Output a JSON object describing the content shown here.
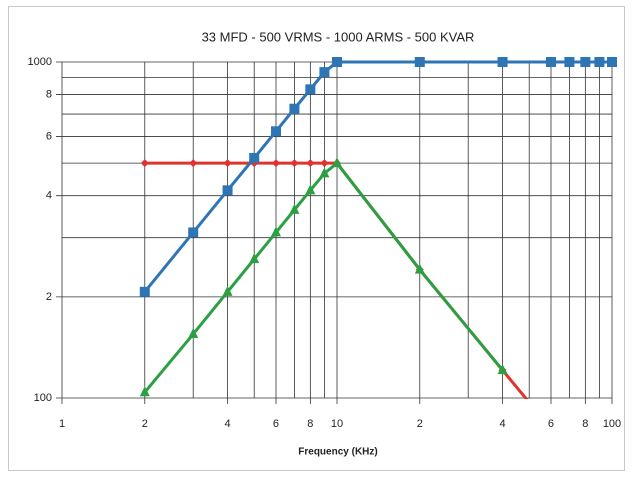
{
  "chart_data": {
    "type": "line",
    "title": "33 MFD - 500 VRMS - 1000 ARMS - 500 KVAR",
    "x_label": "Frequency (KHz)",
    "log_x": true,
    "log_y": true,
    "grid": true,
    "xlim": [
      1,
      100
    ],
    "xticks": [
      1,
      2,
      4,
      6,
      8,
      10,
      {
        "value": 20,
        "label": "2"
      },
      {
        "value": 40,
        "label": "4"
      },
      {
        "value": 60,
        "label": "6"
      },
      {
        "value": 80,
        "label": "8"
      },
      100
    ],
    "xminor": [
      3,
      5,
      7,
      9,
      30,
      50,
      70,
      90
    ],
    "ylim": [
      100,
      1000
    ],
    "yticks": [
      100,
      {
        "value": 200,
        "label": "2"
      },
      {
        "value": 400,
        "label": "4"
      },
      {
        "value": 600,
        "label": "6"
      },
      {
        "value": 800,
        "label": "8"
      },
      1000
    ],
    "yminor": [
      300,
      500,
      700,
      900
    ],
    "series": [
      {
        "color": "#e0322f",
        "marker": "diamond",
        "x": [
          2,
          3,
          4,
          5,
          6,
          7,
          8,
          9,
          10,
          20,
          40,
          50
        ],
        "values": [
          500,
          500,
          500,
          500,
          500,
          500,
          500,
          500,
          500,
          241,
          121,
          97
        ]
      },
      {
        "color": "#2e75b6",
        "marker": "square",
        "x": [
          2,
          3,
          4,
          5,
          6,
          7,
          8,
          9,
          10,
          20,
          40,
          60,
          70,
          80,
          90,
          100
        ],
        "values": [
          207,
          311,
          415,
          518,
          622,
          726,
          829,
          933,
          1000,
          1000,
          1000,
          1000,
          1000,
          1000,
          1000,
          1000
        ]
      },
      {
        "color": "#2aa043",
        "marker": "triangle",
        "x": [
          2,
          3,
          4,
          5,
          6,
          7,
          8,
          9,
          10,
          20,
          40
        ],
        "values": [
          104,
          155,
          207,
          259,
          311,
          363,
          415,
          466,
          500,
          241,
          121
        ]
      }
    ]
  }
}
